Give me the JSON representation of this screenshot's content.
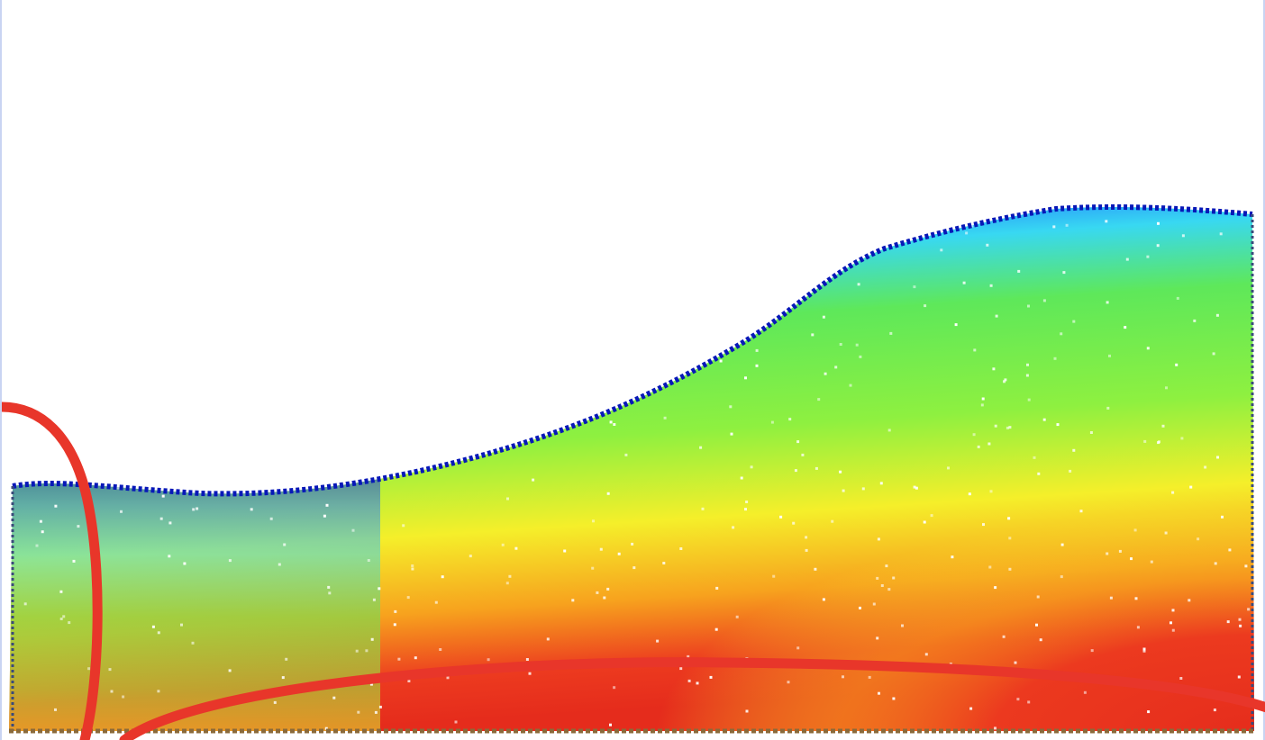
{
  "image": {
    "kind": "simulation-contour",
    "colormap": [
      "#0a1fd8",
      "#1f7bff",
      "#38d8f2",
      "#5ee85a",
      "#8ef040",
      "#f5ef2a",
      "#f7a21e",
      "#ec3a1f",
      "#e52c1c"
    ],
    "background": "#ffffff",
    "annotation_color": "#e8362a",
    "annotations": [
      "red-ellipse-left-boundary",
      "red-ellipse-bottom-boundary"
    ]
  }
}
